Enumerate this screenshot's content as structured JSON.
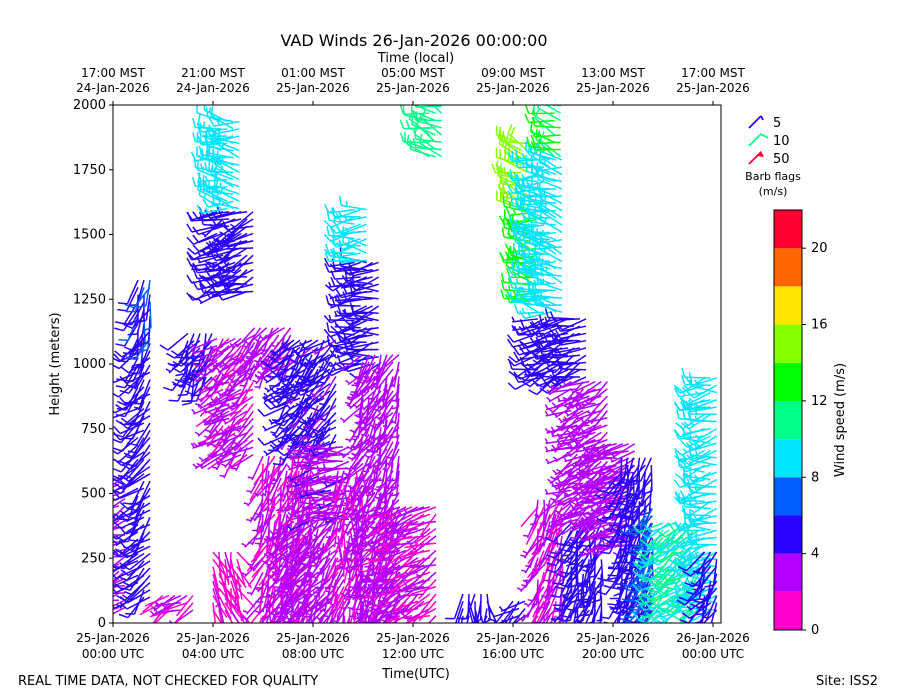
{
  "chart_data": {
    "type": "wind-barb",
    "title": "VAD Winds 26-Jan-2026 00:00:00",
    "top_axis_label": "Time (local)",
    "xlabel": "Time(UTC)",
    "ylabel": "Height (meters)",
    "ylim": [
      0,
      2000
    ],
    "xlim": [
      "2026-01-25T00:00",
      "2026-01-26T00:20"
    ],
    "y_ticks": [
      0,
      250,
      500,
      750,
      1000,
      1250,
      1500,
      1750,
      2000
    ],
    "bottom_ticks": [
      {
        "time": "2026-01-25T00:00",
        "l1": "25-Jan-2026",
        "l2": "00:00 UTC"
      },
      {
        "time": "2026-01-25T04:00",
        "l1": "25-Jan-2026",
        "l2": "04:00 UTC"
      },
      {
        "time": "2026-01-25T08:00",
        "l1": "25-Jan-2026",
        "l2": "08:00 UTC"
      },
      {
        "time": "2026-01-25T12:00",
        "l1": "25-Jan-2026",
        "l2": "12:00 UTC"
      },
      {
        "time": "2026-01-25T16:00",
        "l1": "25-Jan-2026",
        "l2": "16:00 UTC"
      },
      {
        "time": "2026-01-25T20:00",
        "l1": "25-Jan-2026",
        "l2": "20:00 UTC"
      },
      {
        "time": "2026-01-26T00:00",
        "l1": "26-Jan-2026",
        "l2": "00:00 UTC"
      }
    ],
    "top_ticks": [
      {
        "l1": "17:00 MST",
        "l2": "24-Jan-2026"
      },
      {
        "l1": "21:00 MST",
        "l2": "24-Jan-2026"
      },
      {
        "l1": "01:00 MST",
        "l2": "25-Jan-2026"
      },
      {
        "l1": "05:00 MST",
        "l2": "25-Jan-2026"
      },
      {
        "l1": "09:00 MST",
        "l2": "25-Jan-2026"
      },
      {
        "l1": "13:00 MST",
        "l2": "25-Jan-2026"
      },
      {
        "l1": "17:00 MST",
        "l2": "25-Jan-2026"
      }
    ],
    "barb_legend": {
      "items": [
        {
          "label": "5",
          "color": "#2a00ff"
        },
        {
          "label": "10",
          "color": "#00ff88"
        },
        {
          "label": "50",
          "color": "#ff0033"
        }
      ],
      "title1": "Barb flags",
      "title2": "(m/s)"
    },
    "colorbar": {
      "label": "Wind speed (m/s)",
      "range": [
        0,
        22
      ],
      "ticks": [
        0,
        4,
        8,
        12,
        16,
        20
      ],
      "colors": [
        "#ff00cc",
        "#b300ff",
        "#2a00ff",
        "#005eff",
        "#00e5ff",
        "#00ff88",
        "#00ff00",
        "#88ff00",
        "#ffe600",
        "#ff6600",
        "#ff0033"
      ]
    },
    "wind_segments": [
      {
        "t": [
          "2026-01-25T00:00",
          "2026-01-25T00:40"
        ],
        "h": [
          60,
          580
        ],
        "speed": 3,
        "dir": 250
      },
      {
        "t": [
          "2026-01-25T01:00",
          "2026-01-25T01:30"
        ],
        "h": [
          100,
          1100
        ],
        "speed": 5,
        "dir": 225
      },
      {
        "t": [
          "2026-01-25T01:00",
          "2026-01-25T01:40"
        ],
        "h": [
          1100,
          1340
        ],
        "speed": 5.5,
        "dir": 200
      },
      {
        "t": [
          "2026-01-25T02:00",
          "2026-01-25T03:20"
        ],
        "h": [
          50,
          110
        ],
        "speed": 2,
        "dir": 240
      },
      {
        "t": [
          "2026-01-25T03:00",
          "2026-01-25T04:00"
        ],
        "h": [
          950,
          1140
        ],
        "speed": 5,
        "dir": 210
      },
      {
        "t": [
          "2026-01-25T04:00",
          "2026-01-25T05:00"
        ],
        "h": [
          50,
          280
        ],
        "speed": 1.5,
        "dir": 160
      },
      {
        "t": [
          "2026-01-25T04:10",
          "2026-01-25T05:40"
        ],
        "h": [
          650,
          1100
        ],
        "speed": 2.5,
        "dir": 230
      },
      {
        "t": [
          "2026-01-25T04:10",
          "2026-01-25T05:40"
        ],
        "h": [
          1280,
          1600
        ],
        "speed": 5,
        "dir": 250
      },
      {
        "t": [
          "2026-01-25T04:20",
          "2026-01-25T05:10"
        ],
        "h": [
          1600,
          1950
        ],
        "speed": 9,
        "dir": 280
      },
      {
        "t": [
          "2026-01-25T05:40",
          "2026-01-25T07:20"
        ],
        "h": [
          1000,
          1150
        ],
        "speed": 3,
        "dir": 220
      },
      {
        "t": [
          "2026-01-25T06:00",
          "2026-01-25T08:00"
        ],
        "h": [
          0,
          650
        ],
        "speed": 2,
        "dir": 200
      },
      {
        "t": [
          "2026-01-25T07:00",
          "2026-01-25T09:00"
        ],
        "h": [
          0,
          400
        ],
        "speed": 3,
        "dir": 215
      },
      {
        "t": [
          "2026-01-25T07:00",
          "2026-01-25T09:00"
        ],
        "h": [
          700,
          1100
        ],
        "speed": 4.5,
        "dir": 225
      },
      {
        "t": [
          "2026-01-25T08:00",
          "2026-01-25T09:40"
        ],
        "h": [
          400,
          700
        ],
        "speed": 3.5,
        "dir": 260
      },
      {
        "t": [
          "2026-01-25T09:00",
          "2026-01-25T10:00"
        ],
        "h": [
          0,
          600
        ],
        "speed": 2,
        "dir": 190
      },
      {
        "t": [
          "2026-01-25T09:40",
          "2026-01-25T10:40"
        ],
        "h": [
          1000,
          1400
        ],
        "speed": 5,
        "dir": 260
      },
      {
        "t": [
          "2026-01-25T09:40",
          "2026-01-25T10:20"
        ],
        "h": [
          1400,
          1620
        ],
        "speed": 9,
        "dir": 270
      },
      {
        "t": [
          "2026-01-25T10:00",
          "2026-01-25T11:40"
        ],
        "h": [
          0,
          1050
        ],
        "speed": 3,
        "dir": 210
      },
      {
        "t": [
          "2026-01-25T11:00",
          "2026-01-25T13:00"
        ],
        "h": [
          0,
          450
        ],
        "speed": 2,
        "dir": 240
      },
      {
        "t": [
          "2026-01-25T12:40",
          "2026-01-25T13:20"
        ],
        "h": [
          1800,
          2000
        ],
        "speed": 11,
        "dir": 290
      },
      {
        "t": [
          "2026-01-25T14:00",
          "2026-01-25T15:00"
        ],
        "h": [
          0,
          120
        ],
        "speed": 5,
        "dir": 180
      },
      {
        "t": [
          "2026-01-25T16:00",
          "2026-01-25T16:40"
        ],
        "h": [
          0,
          100
        ],
        "speed": 5,
        "dir": 230
      },
      {
        "t": [
          "2026-01-25T16:20",
          "2026-01-25T16:40"
        ],
        "h": [
          1600,
          1860
        ],
        "speed": 15,
        "dir": 290
      },
      {
        "t": [
          "2026-01-25T16:40",
          "2026-01-25T17:00"
        ],
        "h": [
          1250,
          1600
        ],
        "speed": 13,
        "dir": 280
      },
      {
        "t": [
          "2026-01-25T17:00",
          "2026-01-25T18:00"
        ],
        "h": [
          1200,
          1800
        ],
        "speed": 9,
        "dir": 280
      },
      {
        "t": [
          "2026-01-25T17:40",
          "2026-01-25T18:00"
        ],
        "h": [
          1800,
          2000
        ],
        "speed": 12,
        "dir": 290
      },
      {
        "t": [
          "2026-01-25T17:00",
          "2026-01-25T19:00"
        ],
        "h": [
          950,
          1200
        ],
        "speed": 5,
        "dir": 250
      },
      {
        "t": [
          "2026-01-25T17:00",
          "2026-01-25T18:00"
        ],
        "h": [
          0,
          500
        ],
        "speed": 2,
        "dir": 200
      },
      {
        "t": [
          "2026-01-25T18:20",
          "2026-01-25T19:40"
        ],
        "h": [
          50,
          400
        ],
        "speed": 5,
        "dir": 200
      },
      {
        "t": [
          "2026-01-25T18:20",
          "2026-01-25T20:00"
        ],
        "h": [
          400,
          950
        ],
        "speed": 3,
        "dir": 240
      },
      {
        "t": [
          "2026-01-25T19:40",
          "2026-01-25T21:00"
        ],
        "h": [
          300,
          700
        ],
        "speed": 3,
        "dir": 250
      },
      {
        "t": [
          "2026-01-25T20:20",
          "2026-01-25T21:40"
        ],
        "h": [
          50,
          650
        ],
        "speed": 5,
        "dir": 200
      },
      {
        "t": [
          "2026-01-25T21:20",
          "2026-01-25T21:40"
        ],
        "h": [
          50,
          450
        ],
        "speed": 7,
        "dir": 200
      },
      {
        "t": [
          "2026-01-25T22:00",
          "2026-01-25T23:40"
        ],
        "h": [
          50,
          400
        ],
        "speed": 10,
        "dir": 230
      },
      {
        "t": [
          "2026-01-25T23:40",
          "2026-01-26T00:20"
        ],
        "h": [
          50,
          950
        ],
        "speed": 9,
        "dir": 260
      },
      {
        "t": [
          "2026-01-25T23:40",
          "2026-01-26T00:20"
        ],
        "h": [
          50,
          300
        ],
        "speed": 5,
        "dir": 210
      }
    ]
  },
  "footer": {
    "disclaimer": "REAL TIME DATA, NOT CHECKED FOR QUALITY",
    "site": "Site: ISS2"
  }
}
